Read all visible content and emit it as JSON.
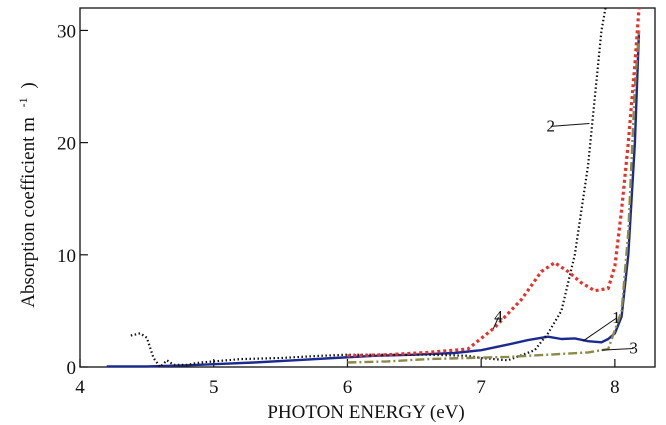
{
  "chart_data": {
    "type": "line",
    "title": "",
    "xlabel": "PHOTON ENERGY (eV)",
    "ylabel_main": "Absorption coefficient m",
    "ylabel_sup": "-1",
    "ylabel_close": ")",
    "xlim": [
      4.0,
      8.3
    ],
    "ylim": [
      0,
      32
    ],
    "x_ticks": [
      4,
      5,
      6,
      7,
      8
    ],
    "y_ticks": [
      0,
      10,
      20,
      30
    ],
    "grid": false,
    "legend": "none",
    "series": [
      {
        "id": "1",
        "label": "1",
        "color": "#1c2a8f",
        "style": "solid",
        "points": [
          [
            4.2,
            0.05
          ],
          [
            4.5,
            0.05
          ],
          [
            4.8,
            0.15
          ],
          [
            5.0,
            0.25
          ],
          [
            5.3,
            0.4
          ],
          [
            5.6,
            0.6
          ],
          [
            5.9,
            0.8
          ],
          [
            6.2,
            1.0
          ],
          [
            6.5,
            1.1
          ],
          [
            6.8,
            1.25
          ],
          [
            7.0,
            1.5
          ],
          [
            7.2,
            2.0
          ],
          [
            7.35,
            2.4
          ],
          [
            7.5,
            2.7
          ],
          [
            7.6,
            2.5
          ],
          [
            7.7,
            2.55
          ],
          [
            7.8,
            2.3
          ],
          [
            7.9,
            2.2
          ],
          [
            7.95,
            2.5
          ],
          [
            8.0,
            3.0
          ],
          [
            8.05,
            4.5
          ],
          [
            8.1,
            10.0
          ],
          [
            8.15,
            20.0
          ],
          [
            8.18,
            30.0
          ]
        ]
      },
      {
        "id": "2",
        "label": "2",
        "color": "#111111",
        "style": "dotted",
        "points": [
          [
            4.38,
            2.8
          ],
          [
            4.45,
            3.0
          ],
          [
            4.5,
            2.6
          ],
          [
            4.55,
            0.8
          ],
          [
            4.6,
            0.0
          ],
          [
            4.65,
            0.6
          ],
          [
            4.7,
            0.2
          ],
          [
            4.8,
            0.2
          ],
          [
            4.9,
            0.4
          ],
          [
            5.0,
            0.5
          ],
          [
            5.2,
            0.7
          ],
          [
            5.5,
            0.8
          ],
          [
            5.8,
            1.0
          ],
          [
            6.0,
            1.1
          ],
          [
            6.3,
            1.1
          ],
          [
            6.6,
            1.1
          ],
          [
            6.9,
            1.0
          ],
          [
            7.0,
            0.8
          ],
          [
            7.2,
            0.6
          ],
          [
            7.4,
            1.5
          ],
          [
            7.5,
            3.0
          ],
          [
            7.6,
            5.0
          ],
          [
            7.7,
            10.0
          ],
          [
            7.8,
            18.0
          ],
          [
            7.85,
            24.0
          ],
          [
            7.9,
            30.0
          ],
          [
            7.93,
            32.0
          ]
        ]
      },
      {
        "id": "3",
        "label": "3",
        "color": "#8a8a4a",
        "style": "dashdot",
        "points": [
          [
            6.0,
            0.4
          ],
          [
            6.3,
            0.5
          ],
          [
            6.6,
            0.7
          ],
          [
            6.9,
            0.8
          ],
          [
            7.2,
            0.9
          ],
          [
            7.5,
            1.1
          ],
          [
            7.8,
            1.3
          ],
          [
            7.95,
            1.6
          ],
          [
            8.05,
            5.0
          ],
          [
            8.1,
            12.0
          ],
          [
            8.15,
            25.0
          ],
          [
            8.18,
            30.0
          ]
        ]
      },
      {
        "id": "4",
        "label": "4",
        "color": "#e8312a",
        "style": "dotted",
        "points": [
          [
            6.0,
            1.0
          ],
          [
            6.3,
            1.1
          ],
          [
            6.6,
            1.3
          ],
          [
            6.9,
            1.6
          ],
          [
            7.1,
            3.5
          ],
          [
            7.3,
            6.0
          ],
          [
            7.45,
            8.5
          ],
          [
            7.55,
            9.3
          ],
          [
            7.65,
            8.5
          ],
          [
            7.75,
            7.5
          ],
          [
            7.85,
            6.8
          ],
          [
            7.95,
            7.0
          ],
          [
            8.0,
            9.0
          ],
          [
            8.05,
            14.0
          ],
          [
            8.1,
            20.0
          ],
          [
            8.15,
            27.0
          ],
          [
            8.18,
            32.0
          ]
        ]
      }
    ],
    "annotations": [
      {
        "text": "1",
        "x": 8.01,
        "y": 3.9,
        "pointer_to": [
          7.76,
          2.3
        ]
      },
      {
        "text": "2",
        "x": 7.52,
        "y": 21.0,
        "pointer_to": [
          7.81,
          21.7
        ]
      },
      {
        "text": "3",
        "x": 8.14,
        "y": 1.2,
        "pointer_to": [
          7.9,
          1.5
        ]
      },
      {
        "text": "4",
        "x": 7.13,
        "y": 4.0,
        "pointer_to": [
          7.09,
          3.4
        ]
      }
    ]
  }
}
